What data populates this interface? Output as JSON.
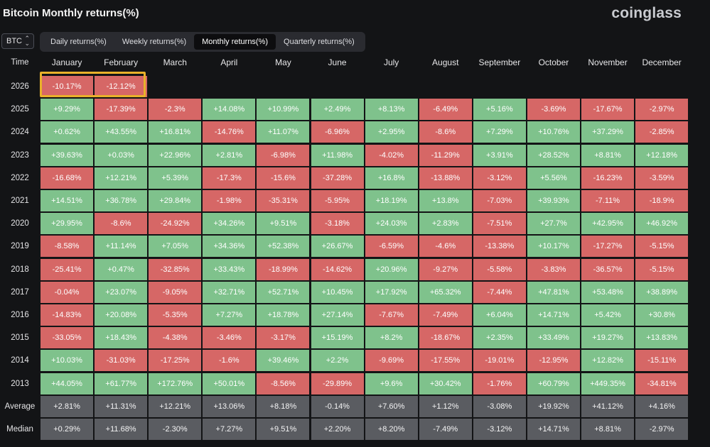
{
  "title": "Bitcoin Monthly returns(%)",
  "logo": "coinglass",
  "asset_select": {
    "value": "BTC",
    "icon": "updown-caret-icon"
  },
  "tabs": [
    "Daily returns(%)",
    "Weekly returns(%)",
    "Monthly returns(%)",
    "Quarterly returns(%)"
  ],
  "active_tab": 2,
  "header": [
    "Time",
    "January",
    "February",
    "March",
    "April",
    "May",
    "June",
    "July",
    "August",
    "September",
    "October",
    "November",
    "December"
  ],
  "highlight_color": "#e9b12a",
  "colors": {
    "positive": "#7fc28c",
    "negative": "#d66766",
    "summary": "#5a5c61",
    "background": "#131416"
  },
  "rows": [
    {
      "label": "2026",
      "values": [
        "-10.17%",
        "-12.12%",
        "",
        "",
        "",
        "",
        "",
        "",
        "",
        "",
        "",
        ""
      ]
    },
    {
      "label": "2025",
      "values": [
        "+9.29%",
        "-17.39%",
        "-2.3%",
        "+14.08%",
        "+10.99%",
        "+2.49%",
        "+8.13%",
        "-6.49%",
        "+5.16%",
        "-3.69%",
        "-17.67%",
        "-2.97%"
      ]
    },
    {
      "label": "2024",
      "values": [
        "+0.62%",
        "+43.55%",
        "+16.81%",
        "-14.76%",
        "+11.07%",
        "-6.96%",
        "+2.95%",
        "-8.6%",
        "+7.29%",
        "+10.76%",
        "+37.29%",
        "-2.85%"
      ]
    },
    {
      "label": "2023",
      "values": [
        "+39.63%",
        "+0.03%",
        "+22.96%",
        "+2.81%",
        "-6.98%",
        "+11.98%",
        "-4.02%",
        "-11.29%",
        "+3.91%",
        "+28.52%",
        "+8.81%",
        "+12.18%"
      ]
    },
    {
      "label": "2022",
      "values": [
        "-16.68%",
        "+12.21%",
        "+5.39%",
        "-17.3%",
        "-15.6%",
        "-37.28%",
        "+16.8%",
        "-13.88%",
        "-3.12%",
        "+5.56%",
        "-16.23%",
        "-3.59%"
      ]
    },
    {
      "label": "2021",
      "values": [
        "+14.51%",
        "+36.78%",
        "+29.84%",
        "-1.98%",
        "-35.31%",
        "-5.95%",
        "+18.19%",
        "+13.8%",
        "-7.03%",
        "+39.93%",
        "-7.11%",
        "-18.9%"
      ]
    },
    {
      "label": "2020",
      "values": [
        "+29.95%",
        "-8.6%",
        "-24.92%",
        "+34.26%",
        "+9.51%",
        "-3.18%",
        "+24.03%",
        "+2.83%",
        "-7.51%",
        "+27.7%",
        "+42.95%",
        "+46.92%"
      ]
    },
    {
      "label": "2019",
      "values": [
        "-8.58%",
        "+11.14%",
        "+7.05%",
        "+34.36%",
        "+52.38%",
        "+26.67%",
        "-6.59%",
        "-4.6%",
        "-13.38%",
        "+10.17%",
        "-17.27%",
        "-5.15%"
      ]
    },
    {
      "label": "2018",
      "values": [
        "-25.41%",
        "+0.47%",
        "-32.85%",
        "+33.43%",
        "-18.99%",
        "-14.62%",
        "+20.96%",
        "-9.27%",
        "-5.58%",
        "-3.83%",
        "-36.57%",
        "-5.15%"
      ]
    },
    {
      "label": "2017",
      "values": [
        "-0.04%",
        "+23.07%",
        "-9.05%",
        "+32.71%",
        "+52.71%",
        "+10.45%",
        "+17.92%",
        "+65.32%",
        "-7.44%",
        "+47.81%",
        "+53.48%",
        "+38.89%"
      ]
    },
    {
      "label": "2016",
      "values": [
        "-14.83%",
        "+20.08%",
        "-5.35%",
        "+7.27%",
        "+18.78%",
        "+27.14%",
        "-7.67%",
        "-7.49%",
        "+6.04%",
        "+14.71%",
        "+5.42%",
        "+30.8%"
      ]
    },
    {
      "label": "2015",
      "values": [
        "-33.05%",
        "+18.43%",
        "-4.38%",
        "-3.46%",
        "-3.17%",
        "+15.19%",
        "+8.2%",
        "-18.67%",
        "+2.35%",
        "+33.49%",
        "+19.27%",
        "+13.83%"
      ]
    },
    {
      "label": "2014",
      "values": [
        "+10.03%",
        "-31.03%",
        "-17.25%",
        "-1.6%",
        "+39.46%",
        "+2.2%",
        "-9.69%",
        "-17.55%",
        "-19.01%",
        "-12.95%",
        "+12.82%",
        "-15.11%"
      ]
    },
    {
      "label": "2013",
      "values": [
        "+44.05%",
        "+61.77%",
        "+172.76%",
        "+50.01%",
        "-8.56%",
        "-29.89%",
        "+9.6%",
        "+30.42%",
        "-1.76%",
        "+60.79%",
        "+449.35%",
        "-34.81%"
      ]
    },
    {
      "label": "Average",
      "summary": true,
      "values": [
        "+2.81%",
        "+11.31%",
        "+12.21%",
        "+13.06%",
        "+8.18%",
        "-0.14%",
        "+7.60%",
        "+1.12%",
        "-3.08%",
        "+19.92%",
        "+41.12%",
        "+4.16%"
      ]
    },
    {
      "label": "Median",
      "summary": true,
      "values": [
        "+0.29%",
        "+11.68%",
        "-2.30%",
        "+7.27%",
        "+9.51%",
        "+2.20%",
        "+8.20%",
        "-7.49%",
        "-3.12%",
        "+14.71%",
        "+8.81%",
        "-2.97%"
      ]
    }
  ]
}
